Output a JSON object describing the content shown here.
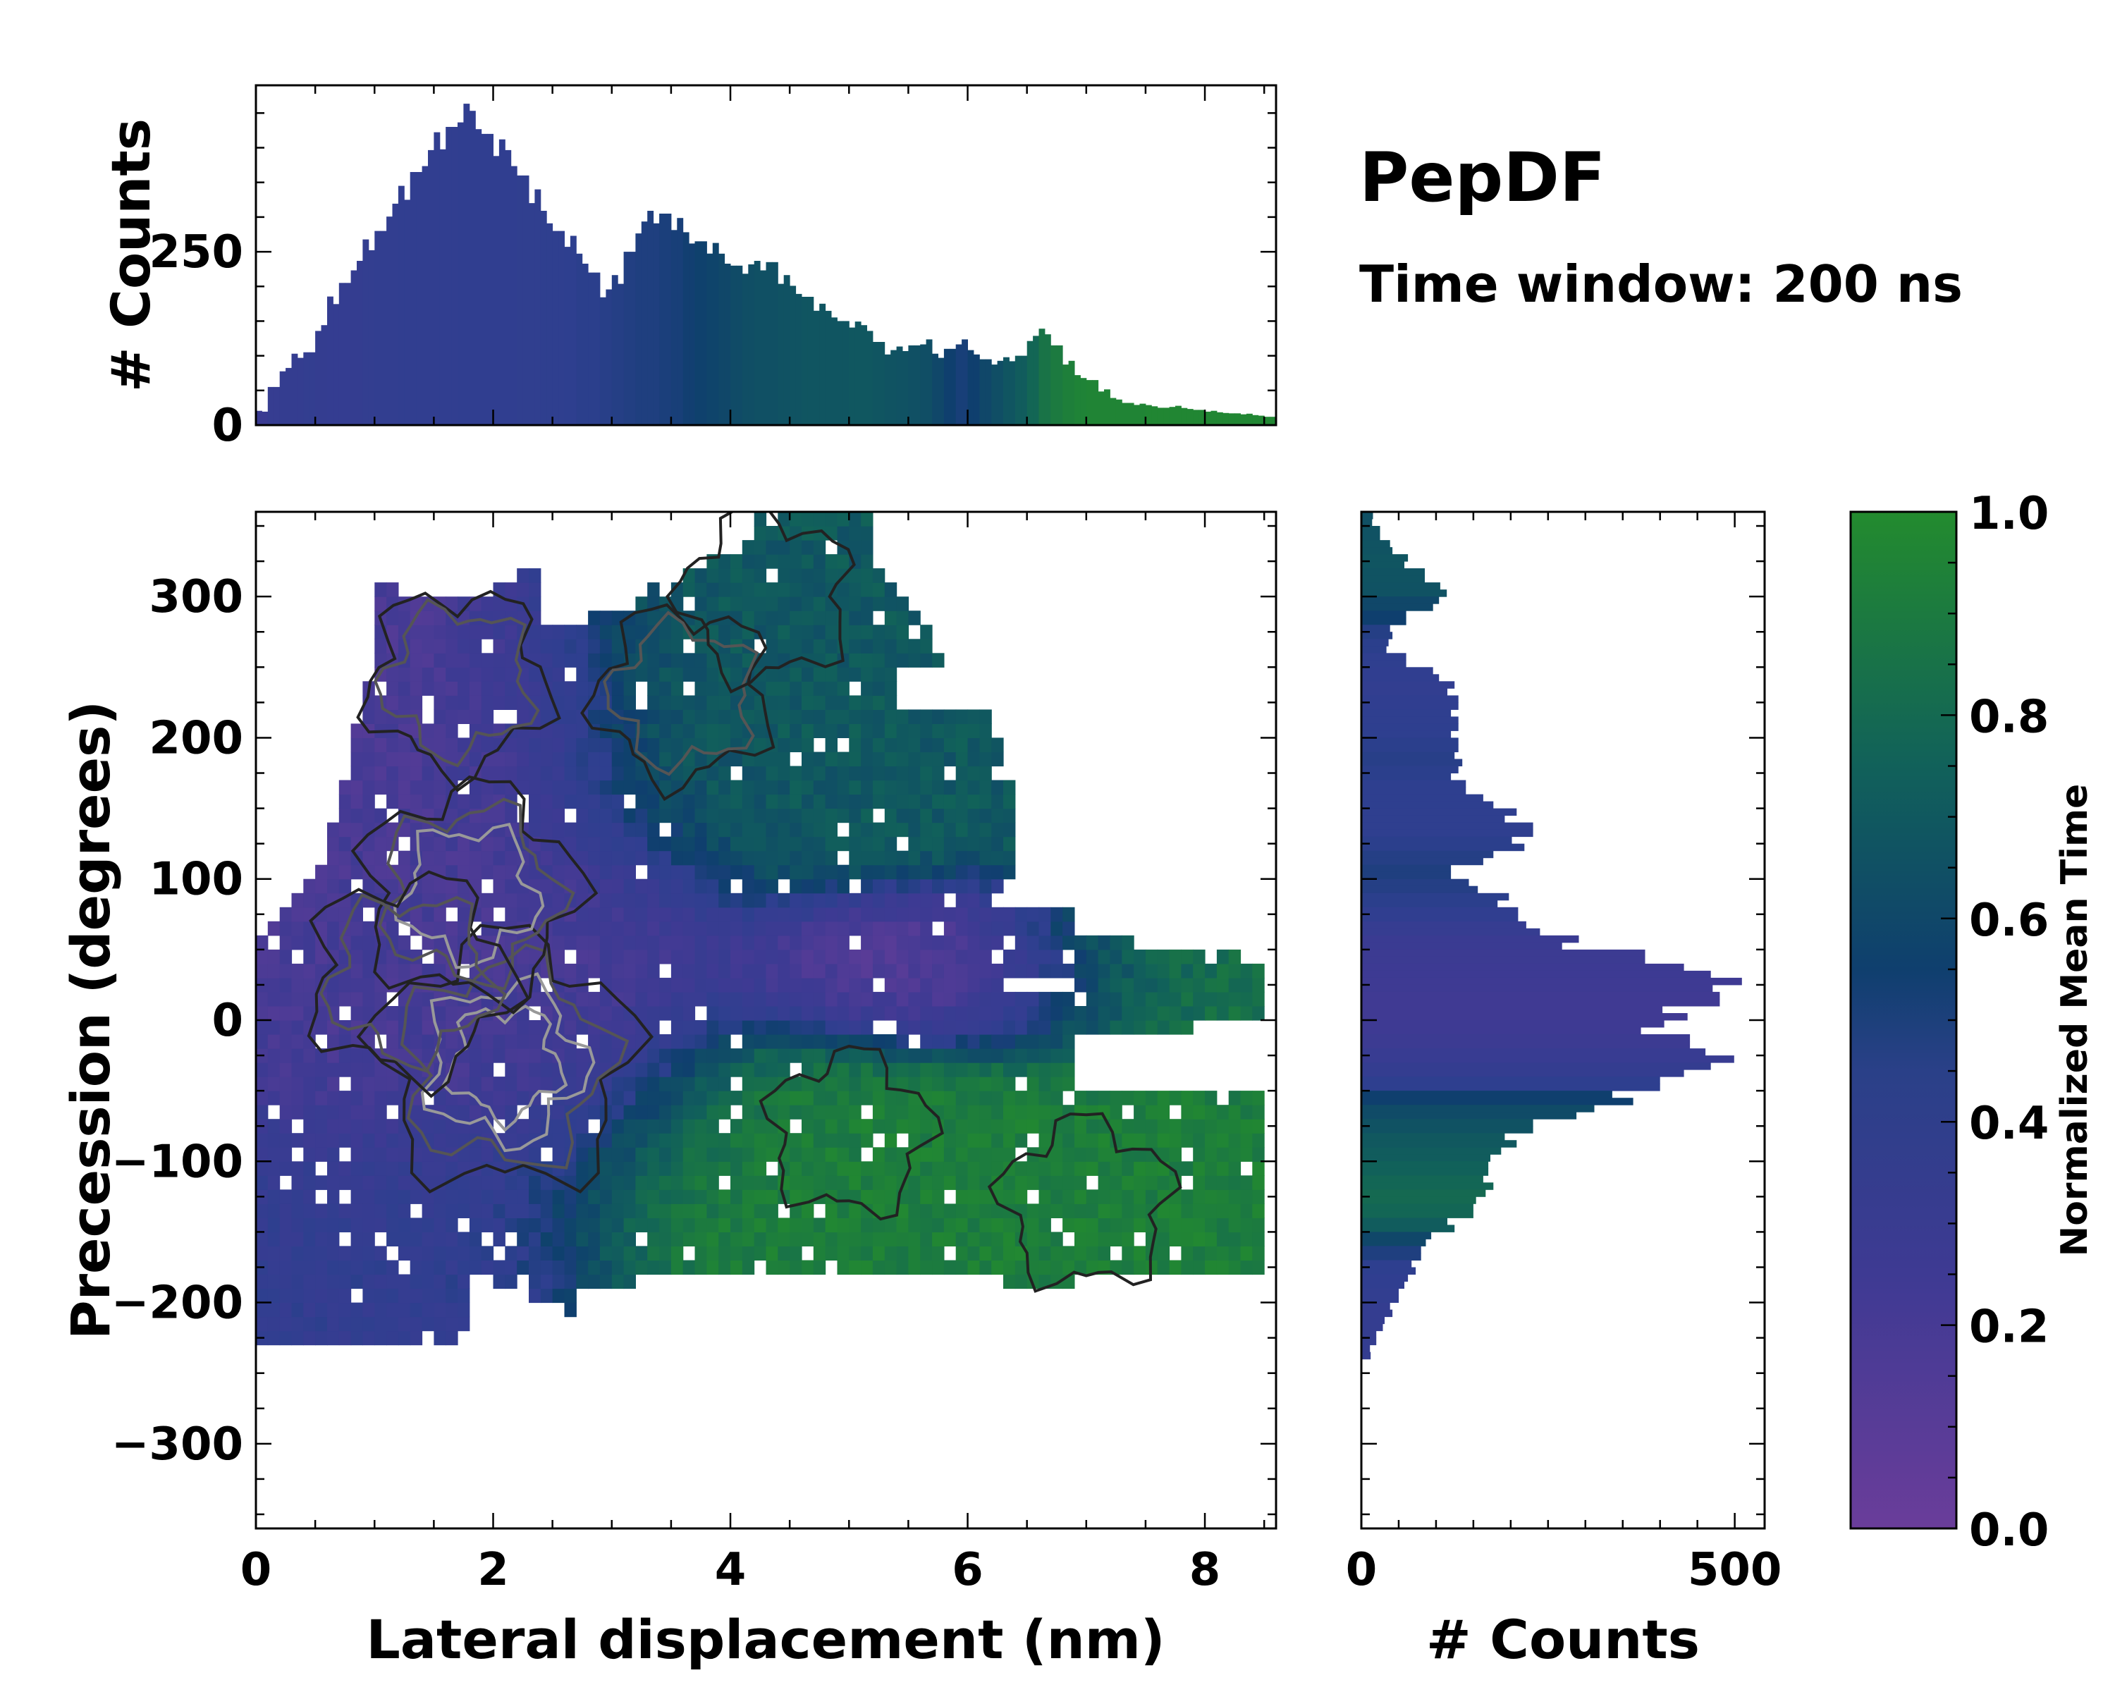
{
  "figure": {
    "title": "PepDF",
    "subtitle": "Time window: 200 ns"
  },
  "colors": {
    "low": "#6a3d9a",
    "mid_low": "#2e3f8f",
    "mid": "#0f3f6e",
    "mid_high": "#11615a",
    "high": "#238b2e",
    "contour_dark": "#222222",
    "contour_mid": "#555555",
    "contour_light": "#999999"
  },
  "chart_data": [
    {
      "id": "joint",
      "type": "heatmap",
      "xlabel": "Lateral displacement (nm)",
      "ylabel": "Precession (degrees)",
      "xlim": [
        0,
        8.6
      ],
      "ylim": [
        -360,
        360
      ],
      "xticks": [
        0,
        2,
        4,
        6,
        8
      ],
      "yticks": [
        -300,
        -200,
        -100,
        0,
        100,
        200,
        300
      ],
      "xtick_labels": [
        "0",
        "2",
        "4",
        "6",
        "8"
      ],
      "ytick_labels": [
        "−300",
        "−200",
        "−100",
        "0",
        "100",
        "200",
        "300"
      ],
      "color_metric": "Normalized Mean Time",
      "regions": [
        {
          "name": "left-purple-lobe",
          "x": [
            0.8,
            2.6
          ],
          "y": [
            150,
            330
          ],
          "mean_time": 0.15
        },
        {
          "name": "center-purple-band",
          "x": [
            0.3,
            3.2
          ],
          "y": [
            -100,
            120
          ],
          "mean_time": 0.2
        },
        {
          "name": "lower-left-blue",
          "x": [
            0.0,
            2.2
          ],
          "y": [
            -240,
            -100
          ],
          "mean_time": 0.4
        },
        {
          "name": "upper-teal-lobe",
          "x": [
            2.4,
            6.3
          ],
          "y": [
            150,
            360
          ],
          "mean_time": 0.7
        },
        {
          "name": "right-purple-streak",
          "x": [
            4.8,
            7.0
          ],
          "y": [
            10,
            50
          ],
          "mean_time": 0.1
        },
        {
          "name": "lower-green-lobe",
          "x": [
            3.0,
            8.5
          ],
          "y": [
            -190,
            -40
          ],
          "mean_time": 0.92
        },
        {
          "name": "right-green-lobe",
          "x": [
            6.6,
            8.4
          ],
          "y": [
            0,
            60
          ],
          "mean_time": 0.85
        }
      ],
      "density_peaks": [
        {
          "x": 2.1,
          "y": -30,
          "level": 1.0
        },
        {
          "x": 1.8,
          "y": 90,
          "level": 0.7
        },
        {
          "x": 1.3,
          "y": 30,
          "level": 0.6
        },
        {
          "x": 1.7,
          "y": 240,
          "level": 0.45
        },
        {
          "x": 3.6,
          "y": 230,
          "level": 0.4
        },
        {
          "x": 4.3,
          "y": 300,
          "level": 0.35
        },
        {
          "x": 7.0,
          "y": -130,
          "level": 0.35
        },
        {
          "x": 5.0,
          "y": -80,
          "level": 0.3
        }
      ]
    },
    {
      "id": "marginal-x",
      "type": "bar",
      "ylabel": "# Counts",
      "xlim": [
        0,
        8.6
      ],
      "ylim": [
        0,
        490
      ],
      "yticks": [
        0,
        250
      ],
      "ytick_labels": [
        "0",
        "250"
      ],
      "bin_width": 0.1,
      "x": [
        0.05,
        0.15,
        0.25,
        0.35,
        0.45,
        0.55,
        0.65,
        0.75,
        0.85,
        0.95,
        1.05,
        1.15,
        1.25,
        1.35,
        1.45,
        1.55,
        1.65,
        1.75,
        1.85,
        1.95,
        2.05,
        2.15,
        2.25,
        2.35,
        2.45,
        2.55,
        2.65,
        2.75,
        2.85,
        2.95,
        3.05,
        3.15,
        3.25,
        3.35,
        3.45,
        3.55,
        3.65,
        3.75,
        3.85,
        3.95,
        4.05,
        4.15,
        4.25,
        4.35,
        4.45,
        4.55,
        4.65,
        4.75,
        4.85,
        4.95,
        5.05,
        5.15,
        5.25,
        5.35,
        5.45,
        5.55,
        5.65,
        5.75,
        5.85,
        5.95,
        6.05,
        6.15,
        6.25,
        6.35,
        6.45,
        6.55,
        6.65,
        6.75,
        6.85,
        6.95,
        7.05,
        7.15,
        7.25,
        7.35,
        7.45,
        7.55,
        7.65,
        7.75,
        7.85,
        7.95,
        8.05,
        8.15,
        8.25,
        8.35,
        8.45,
        8.55
      ],
      "values": [
        20,
        55,
        80,
        100,
        105,
        140,
        180,
        205,
        230,
        260,
        280,
        310,
        335,
        365,
        385,
        410,
        430,
        450,
        440,
        420,
        400,
        385,
        360,
        330,
        300,
        280,
        265,
        240,
        220,
        190,
        210,
        250,
        285,
        300,
        305,
        290,
        270,
        265,
        255,
        240,
        230,
        225,
        230,
        235,
        210,
        195,
        185,
        170,
        160,
        150,
        145,
        140,
        120,
        105,
        110,
        115,
        120,
        100,
        110,
        120,
        105,
        95,
        90,
        95,
        100,
        125,
        135,
        115,
        90,
        70,
        65,
        50,
        38,
        32,
        30,
        28,
        25,
        27,
        24,
        22,
        20,
        18,
        17,
        16,
        14,
        12
      ],
      "mean_time": [
        0.3,
        0.35,
        0.38,
        0.38,
        0.39,
        0.38,
        0.37,
        0.37,
        0.38,
        0.39,
        0.4,
        0.4,
        0.41,
        0.41,
        0.41,
        0.41,
        0.41,
        0.42,
        0.42,
        0.42,
        0.42,
        0.42,
        0.43,
        0.43,
        0.44,
        0.44,
        0.45,
        0.46,
        0.46,
        0.47,
        0.48,
        0.49,
        0.5,
        0.5,
        0.51,
        0.52,
        0.54,
        0.56,
        0.58,
        0.6,
        0.62,
        0.64,
        0.65,
        0.65,
        0.66,
        0.67,
        0.68,
        0.68,
        0.68,
        0.68,
        0.69,
        0.69,
        0.68,
        0.67,
        0.66,
        0.65,
        0.64,
        0.6,
        0.55,
        0.52,
        0.55,
        0.6,
        0.64,
        0.68,
        0.72,
        0.78,
        0.86,
        0.9,
        0.93,
        0.95,
        0.96,
        0.96,
        0.96,
        0.96,
        0.96,
        0.97,
        0.97,
        0.97,
        0.97,
        0.97,
        0.97,
        0.97,
        0.97,
        0.97,
        0.97,
        0.97
      ]
    },
    {
      "id": "marginal-y",
      "type": "bar",
      "orientation": "horizontal",
      "xlabel": "# Counts",
      "xlim": [
        0,
        540
      ],
      "xticks": [
        0,
        500
      ],
      "xtick_labels": [
        "0",
        "500"
      ],
      "ylim": [
        -360,
        360
      ],
      "bin_width": 10,
      "y": [
        355,
        345,
        335,
        325,
        315,
        305,
        295,
        285,
        275,
        265,
        255,
        245,
        235,
        225,
        215,
        205,
        195,
        185,
        175,
        165,
        155,
        145,
        135,
        125,
        115,
        105,
        95,
        85,
        75,
        65,
        55,
        45,
        35,
        25,
        15,
        5,
        -5,
        -15,
        -25,
        -35,
        -45,
        -55,
        -65,
        -75,
        -85,
        -95,
        -105,
        -115,
        -125,
        -135,
        -145,
        -155,
        -165,
        -175,
        -185,
        -195,
        -205,
        -215,
        -225,
        -235
      ],
      "values": [
        15,
        25,
        40,
        60,
        85,
        110,
        100,
        60,
        40,
        35,
        60,
        100,
        120,
        130,
        125,
        125,
        130,
        130,
        125,
        140,
        170,
        200,
        230,
        210,
        170,
        120,
        150,
        190,
        210,
        230,
        280,
        380,
        450,
        490,
        480,
        420,
        390,
        440,
        480,
        450,
        400,
        350,
        300,
        230,
        200,
        180,
        170,
        170,
        160,
        150,
        120,
        90,
        80,
        70,
        60,
        50,
        40,
        30,
        20,
        12
      ],
      "mean_time": [
        0.65,
        0.66,
        0.67,
        0.68,
        0.67,
        0.66,
        0.6,
        0.55,
        0.48,
        0.46,
        0.44,
        0.42,
        0.4,
        0.42,
        0.44,
        0.45,
        0.46,
        0.47,
        0.46,
        0.45,
        0.45,
        0.44,
        0.44,
        0.46,
        0.48,
        0.5,
        0.48,
        0.46,
        0.42,
        0.35,
        0.3,
        0.28,
        0.26,
        0.25,
        0.24,
        0.24,
        0.25,
        0.28,
        0.32,
        0.38,
        0.45,
        0.55,
        0.62,
        0.66,
        0.7,
        0.72,
        0.75,
        0.78,
        0.8,
        0.78,
        0.72,
        0.6,
        0.5,
        0.45,
        0.42,
        0.4,
        0.38,
        0.38,
        0.38,
        0.38
      ]
    },
    {
      "id": "colorbar",
      "type": "colorbar",
      "label": "Normalized Mean Time",
      "range": [
        0.0,
        1.0
      ],
      "ticks": [
        0.0,
        0.2,
        0.4,
        0.6,
        0.8,
        1.0
      ],
      "tick_labels": [
        "0.0",
        "0.2",
        "0.4",
        "0.6",
        "0.8",
        "1.0"
      ]
    }
  ]
}
